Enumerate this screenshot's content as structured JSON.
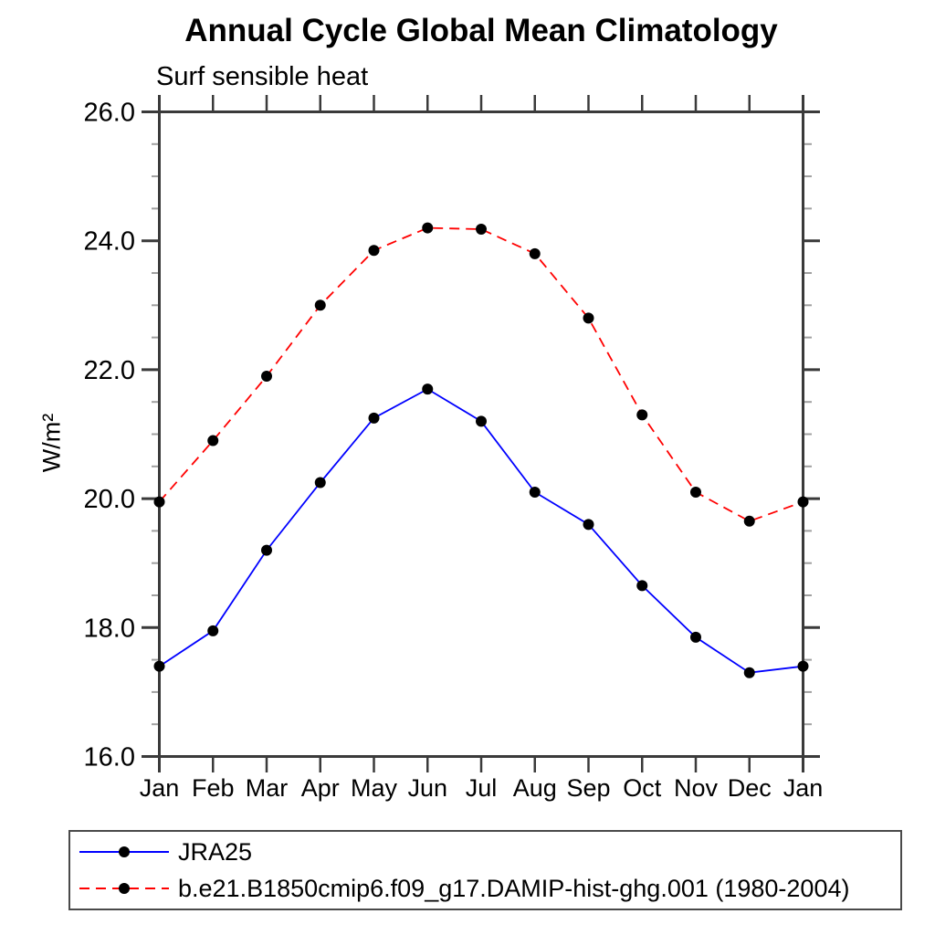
{
  "chart_data": {
    "type": "line",
    "title": "Annual Cycle Global Mean Climatology",
    "subtitle": "Surf sensible heat",
    "ylabel": "W/m²",
    "x_categories": [
      "Jan",
      "Feb",
      "Mar",
      "Apr",
      "May",
      "Jun",
      "Jul",
      "Aug",
      "Sep",
      "Oct",
      "Nov",
      "Dec",
      "Jan"
    ],
    "ylim": [
      16.0,
      26.0
    ],
    "y_major_step": 2.0,
    "y_minor_step": 0.5,
    "y_major_labels": [
      "16.0",
      "18.0",
      "20.0",
      "22.0",
      "24.0",
      "26.0"
    ],
    "grid": "off",
    "legend_position": "bottom-box",
    "axis_color": "#3a3a3a",
    "minor_tick_color": "#a0a0a0",
    "marker_color": "#000000",
    "series": [
      {
        "name": "JRA25",
        "color": "#0000ff",
        "style": "solid",
        "marker": "circle",
        "values": [
          17.4,
          17.95,
          19.2,
          20.25,
          21.25,
          21.7,
          21.2,
          20.1,
          19.6,
          18.65,
          17.85,
          17.3,
          17.4
        ]
      },
      {
        "name": "b.e21.B1850cmip6.f09_g17.DAMIP-hist-ghg.001 (1980-2004)",
        "color": "#ff0000",
        "style": "dashed",
        "marker": "circle",
        "values": [
          19.95,
          20.9,
          21.9,
          23.0,
          23.85,
          24.2,
          24.18,
          23.8,
          22.8,
          21.3,
          20.1,
          19.65,
          19.95
        ]
      }
    ]
  }
}
